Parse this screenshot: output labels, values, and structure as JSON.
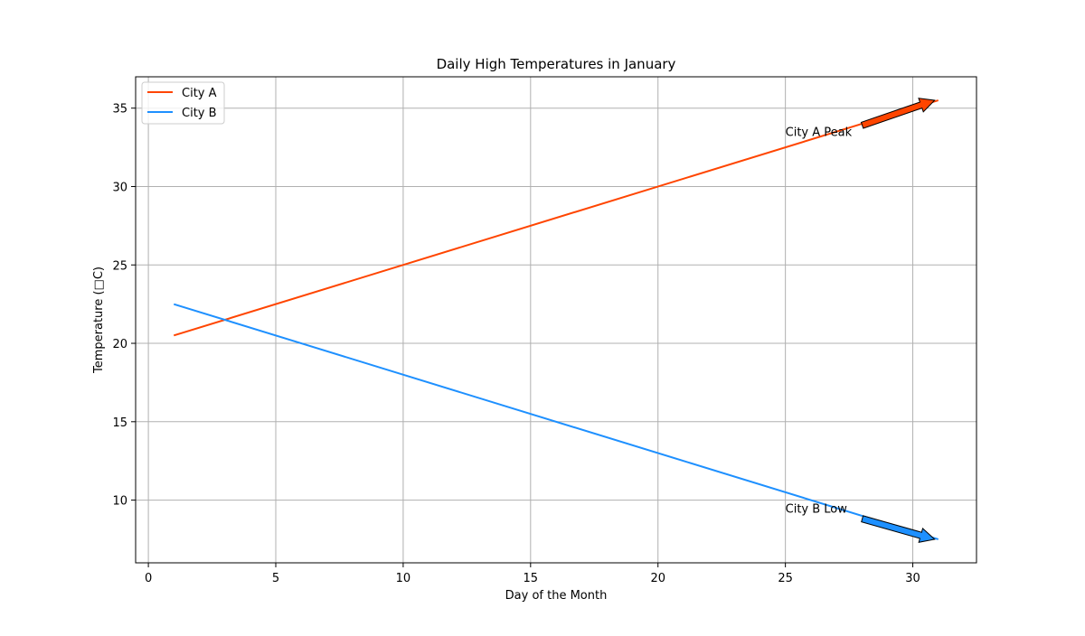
{
  "chart_data": {
    "type": "line",
    "title": "Daily High Temperatures in January",
    "xlabel": "Day of the Month",
    "ylabel": "Temperature (□C)",
    "xlim": [
      -0.5,
      32.5
    ],
    "ylim": [
      6.0,
      37.0
    ],
    "x_ticks": [
      0,
      5,
      10,
      15,
      20,
      25,
      30
    ],
    "y_ticks": [
      10,
      15,
      20,
      25,
      30,
      35
    ],
    "grid": true,
    "legend_position": "top-left",
    "series": [
      {
        "name": "City A",
        "color": "#ff4500",
        "x": [
          1,
          31
        ],
        "y": [
          20.5,
          35.5
        ]
      },
      {
        "name": "City B",
        "color": "#1e90ff",
        "x": [
          1,
          31
        ],
        "y": [
          22.5,
          7.5
        ]
      }
    ],
    "annotations": [
      {
        "text": "City A Peak",
        "color": "#ff4500",
        "xy": [
          31,
          35.5
        ],
        "text_xy": [
          25,
          33.5
        ]
      },
      {
        "text": "City B Low",
        "color": "#1e90ff",
        "xy": [
          31,
          7.5
        ],
        "text_xy": [
          25,
          9.5
        ]
      }
    ]
  }
}
